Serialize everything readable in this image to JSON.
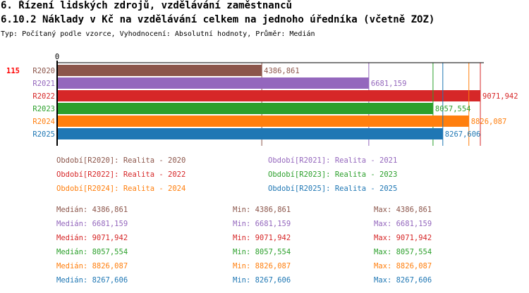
{
  "header": {
    "title": "6. Řízení lidských zdrojů, vzdělávání zaměstnanců",
    "subtitle": "6.10.2 Náklady v Kč na vzdělávání celkem na jednoho úředníka (včetně ZOZ)",
    "type_line": "Typ: Počítaný podle vzorce, Vyhodnocení: Absolutní hodnoty, Průměr: Medián"
  },
  "chart_data": {
    "type": "bar",
    "orientation": "horizontal",
    "row_id": "115",
    "axis_zero_label": "0",
    "xlim": [
      0,
      9071.942
    ],
    "categories": [
      "R2020",
      "R2021",
      "R2022",
      "R2023",
      "R2024",
      "R2025"
    ],
    "values": [
      4386.861,
      6681.159,
      9071.942,
      8057.554,
      8826.087,
      8267.606
    ],
    "value_labels": [
      "4386,861",
      "6681,159",
      "9071,942",
      "8057,554",
      "8826,087",
      "8267,606"
    ],
    "colors": [
      "#8c564b",
      "#9467bd",
      "#d62728",
      "#2ca02c",
      "#ff7f0e",
      "#1f77b4"
    ]
  },
  "legend": [
    "Období[R2020]: Realita - 2020",
    "Období[R2021]: Realita - 2021",
    "Období[R2022]: Realita - 2022",
    "Období[R2023]: Realita - 2023",
    "Období[R2024]: Realita - 2024",
    "Období[R2025]: Realita - 2025"
  ],
  "stats": [
    {
      "median": "Medián: 4386,861",
      "min": "Min: 4386,861",
      "max": "Max: 4386,861"
    },
    {
      "median": "Medián: 6681,159",
      "min": "Min: 6681,159",
      "max": "Max: 6681,159"
    },
    {
      "median": "Medián: 9071,942",
      "min": "Min: 9071,942",
      "max": "Max: 9071,942"
    },
    {
      "median": "Medián: 8057,554",
      "min": "Min: 8057,554",
      "max": "Max: 8057,554"
    },
    {
      "median": "Medián: 8826,087",
      "min": "Min: 8826,087",
      "max": "Max: 8826,087"
    },
    {
      "median": "Medián: 8267,606",
      "min": "Min: 8267,606",
      "max": "Max: 8267,606"
    }
  ]
}
